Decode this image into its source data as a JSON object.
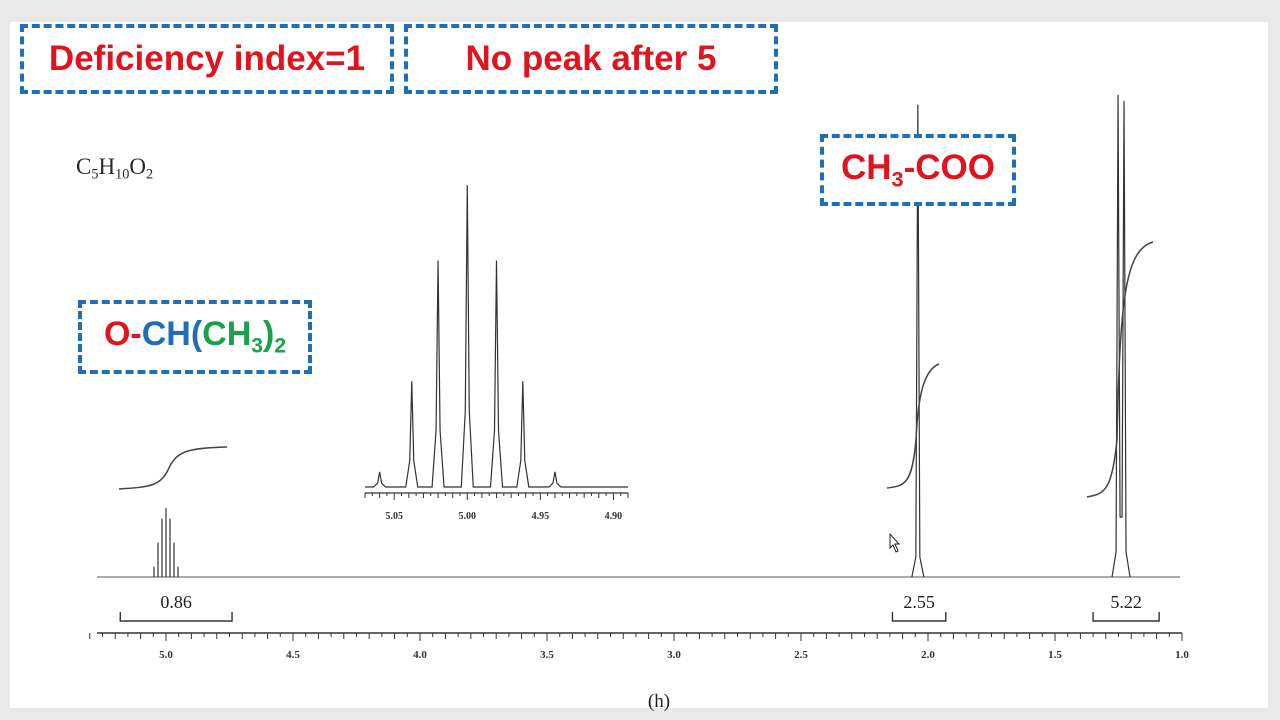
{
  "annotations": {
    "deficiency": "Deficiency index=1",
    "no_peak": "No peak after 5",
    "ch3coo": {
      "part1": "CH",
      "sub1": "3",
      "part2": "-COO"
    },
    "och": {
      "o": "O",
      "dash": "-",
      "ch": "CH(",
      "ch3": "CH",
      "sub3": "3",
      "close": ")",
      "sub2": "2"
    }
  },
  "formula": {
    "c": "C",
    "c_sub": "5",
    "h": "H",
    "h_sub": "10",
    "o": "O",
    "o_sub": "2"
  },
  "chart_data": {
    "type": "line",
    "title": "",
    "xlabel": "(h)",
    "ylabel": "",
    "x_reversed": true,
    "xlim": [
      5.3,
      1.0
    ],
    "x_ticks": [
      "5.0",
      "4.5",
      "4.0",
      "3.5",
      "3.0",
      "2.5",
      "2.0",
      "1.5",
      "1.0"
    ],
    "peaks": [
      {
        "shift": 5.0,
        "multiplicity": "septet",
        "relative_height": 0.14
      },
      {
        "shift": 2.04,
        "multiplicity": "singlet",
        "relative_height": 0.96
      },
      {
        "shift": 1.24,
        "multiplicity": "doublet",
        "relative_height": 0.98
      }
    ],
    "integrals": [
      {
        "label": "0.86",
        "range": [
          5.18,
          4.74
        ]
      },
      {
        "label": "2.55",
        "range": [
          2.14,
          1.93
        ]
      },
      {
        "label": "5.22",
        "range": [
          1.35,
          1.09
        ]
      }
    ],
    "inset": {
      "xlim": [
        5.07,
        4.89
      ],
      "x_ticks": [
        "5.05",
        "5.00",
        "4.95",
        "4.90"
      ],
      "septet_lines": [
        5.06,
        5.038,
        5.02,
        5.0,
        4.98,
        4.962,
        4.94
      ],
      "relative_heights": [
        0.05,
        0.35,
        0.75,
        1.0,
        0.75,
        0.35,
        0.05
      ]
    }
  }
}
